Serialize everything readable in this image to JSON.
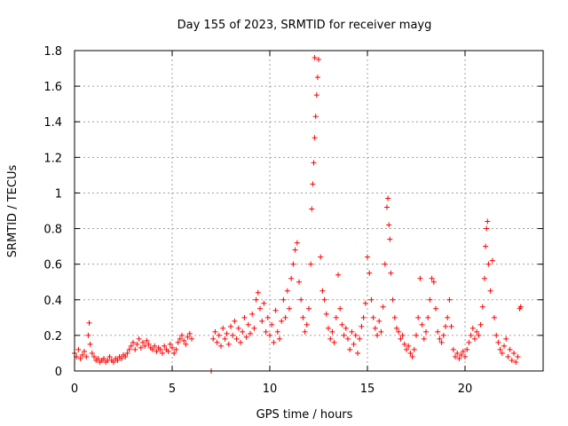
{
  "chart_data": {
    "type": "scatter",
    "title": "Day 155 of 2023, SRMTID for receiver mayg",
    "xlabel": "GPS time / hours",
    "ylabel": "SRMTID / TECUs",
    "xlim": [
      0,
      24
    ],
    "ylim": [
      0,
      1.8
    ],
    "x_ticks": [
      0,
      5,
      10,
      15,
      20
    ],
    "x_tick_labels": [
      "0",
      "5",
      "10",
      "15",
      "20"
    ],
    "y_ticks": [
      0,
      0.2,
      0.4,
      0.6,
      0.8,
      1.0,
      1.2,
      1.4,
      1.6,
      1.8
    ],
    "y_tick_labels": [
      "0",
      "0.2",
      "0.4",
      "0.6",
      "0.8",
      "1",
      "1.2",
      "1.4",
      "1.6",
      "1.8"
    ],
    "grid": true,
    "series": [
      {
        "name": "SRMTID",
        "color": "#ff0000",
        "marker": "plus",
        "points": [
          [
            0.0,
            0.1
          ],
          [
            0.1,
            0.08
          ],
          [
            0.2,
            0.12
          ],
          [
            0.3,
            0.07
          ],
          [
            0.4,
            0.09
          ],
          [
            0.5,
            0.11
          ],
          [
            0.6,
            0.08
          ],
          [
            0.7,
            0.2
          ],
          [
            0.75,
            0.27
          ],
          [
            0.8,
            0.15
          ],
          [
            0.9,
            0.1
          ],
          [
            1.0,
            0.08
          ],
          [
            1.1,
            0.06
          ],
          [
            1.2,
            0.07
          ],
          [
            1.3,
            0.05
          ],
          [
            1.4,
            0.06
          ],
          [
            1.5,
            0.07
          ],
          [
            1.6,
            0.05
          ],
          [
            1.7,
            0.06
          ],
          [
            1.8,
            0.08
          ],
          [
            1.9,
            0.06
          ],
          [
            2.0,
            0.05
          ],
          [
            2.1,
            0.07
          ],
          [
            2.2,
            0.06
          ],
          [
            2.3,
            0.08
          ],
          [
            2.4,
            0.07
          ],
          [
            2.5,
            0.09
          ],
          [
            2.6,
            0.08
          ],
          [
            2.7,
            0.1
          ],
          [
            2.8,
            0.12
          ],
          [
            2.9,
            0.14
          ],
          [
            3.0,
            0.16
          ],
          [
            3.1,
            0.12
          ],
          [
            3.2,
            0.15
          ],
          [
            3.3,
            0.18
          ],
          [
            3.4,
            0.13
          ],
          [
            3.5,
            0.16
          ],
          [
            3.6,
            0.14
          ],
          [
            3.7,
            0.17
          ],
          [
            3.8,
            0.15
          ],
          [
            3.9,
            0.13
          ],
          [
            4.0,
            0.12
          ],
          [
            4.1,
            0.14
          ],
          [
            4.2,
            0.11
          ],
          [
            4.3,
            0.13
          ],
          [
            4.4,
            0.12
          ],
          [
            4.5,
            0.1
          ],
          [
            4.6,
            0.14
          ],
          [
            4.7,
            0.12
          ],
          [
            4.8,
            0.11
          ],
          [
            4.9,
            0.15
          ],
          [
            5.0,
            0.13
          ],
          [
            5.1,
            0.1
          ],
          [
            5.2,
            0.12
          ],
          [
            5.3,
            0.16
          ],
          [
            5.4,
            0.18
          ],
          [
            5.5,
            0.2
          ],
          [
            5.6,
            0.17
          ],
          [
            5.7,
            0.15
          ],
          [
            5.8,
            0.19
          ],
          [
            5.9,
            0.21
          ],
          [
            6.0,
            0.18
          ],
          [
            7.0,
            0.0
          ],
          [
            7.1,
            0.18
          ],
          [
            7.2,
            0.22
          ],
          [
            7.3,
            0.16
          ],
          [
            7.4,
            0.2
          ],
          [
            7.5,
            0.14
          ],
          [
            7.6,
            0.24
          ],
          [
            7.7,
            0.18
          ],
          [
            7.8,
            0.21
          ],
          [
            7.9,
            0.15
          ],
          [
            8.0,
            0.25
          ],
          [
            8.1,
            0.2
          ],
          [
            8.2,
            0.28
          ],
          [
            8.3,
            0.18
          ],
          [
            8.4,
            0.24
          ],
          [
            8.5,
            0.16
          ],
          [
            8.6,
            0.22
          ],
          [
            8.7,
            0.3
          ],
          [
            8.8,
            0.19
          ],
          [
            8.9,
            0.26
          ],
          [
            9.0,
            0.21
          ],
          [
            9.1,
            0.32
          ],
          [
            9.2,
            0.24
          ],
          [
            9.3,
            0.4
          ],
          [
            9.4,
            0.44
          ],
          [
            9.5,
            0.35
          ],
          [
            9.6,
            0.28
          ],
          [
            9.7,
            0.38
          ],
          [
            9.8,
            0.22
          ],
          [
            9.9,
            0.3
          ],
          [
            10.0,
            0.2
          ],
          [
            10.1,
            0.26
          ],
          [
            10.2,
            0.16
          ],
          [
            10.3,
            0.34
          ],
          [
            10.4,
            0.22
          ],
          [
            10.5,
            0.18
          ],
          [
            10.6,
            0.28
          ],
          [
            10.7,
            0.4
          ],
          [
            10.8,
            0.3
          ],
          [
            10.9,
            0.45
          ],
          [
            11.0,
            0.35
          ],
          [
            11.1,
            0.52
          ],
          [
            11.2,
            0.6
          ],
          [
            11.3,
            0.68
          ],
          [
            11.4,
            0.72
          ],
          [
            11.5,
            0.5
          ],
          [
            11.6,
            0.4
          ],
          [
            11.7,
            0.3
          ],
          [
            11.8,
            0.22
          ],
          [
            11.9,
            0.26
          ],
          [
            12.0,
            0.35
          ],
          [
            12.1,
            0.6
          ],
          [
            12.15,
            0.91
          ],
          [
            12.2,
            1.05
          ],
          [
            12.25,
            1.17
          ],
          [
            12.3,
            1.31
          ],
          [
            12.35,
            1.43
          ],
          [
            12.4,
            1.55
          ],
          [
            12.45,
            1.65
          ],
          [
            12.5,
            1.75
          ],
          [
            12.3,
            1.76
          ],
          [
            12.6,
            0.64
          ],
          [
            12.7,
            0.45
          ],
          [
            12.8,
            0.4
          ],
          [
            12.9,
            0.32
          ],
          [
            13.0,
            0.24
          ],
          [
            13.1,
            0.18
          ],
          [
            13.2,
            0.22
          ],
          [
            13.3,
            0.16
          ],
          [
            13.4,
            0.3
          ],
          [
            13.5,
            0.54
          ],
          [
            13.6,
            0.35
          ],
          [
            13.7,
            0.26
          ],
          [
            13.8,
            0.2
          ],
          [
            13.9,
            0.24
          ],
          [
            14.0,
            0.18
          ],
          [
            14.1,
            0.12
          ],
          [
            14.2,
            0.22
          ],
          [
            14.3,
            0.15
          ],
          [
            14.4,
            0.2
          ],
          [
            14.5,
            0.1
          ],
          [
            14.6,
            0.18
          ],
          [
            14.7,
            0.25
          ],
          [
            14.8,
            0.3
          ],
          [
            14.9,
            0.38
          ],
          [
            15.0,
            0.64
          ],
          [
            15.1,
            0.55
          ],
          [
            15.2,
            0.4
          ],
          [
            15.3,
            0.3
          ],
          [
            15.4,
            0.24
          ],
          [
            15.5,
            0.2
          ],
          [
            15.6,
            0.28
          ],
          [
            15.7,
            0.22
          ],
          [
            15.8,
            0.36
          ],
          [
            15.9,
            0.6
          ],
          [
            16.0,
            0.92
          ],
          [
            16.05,
            0.97
          ],
          [
            16.1,
            0.82
          ],
          [
            16.15,
            0.74
          ],
          [
            16.2,
            0.55
          ],
          [
            16.3,
            0.4
          ],
          [
            16.4,
            0.3
          ],
          [
            16.5,
            0.24
          ],
          [
            16.6,
            0.22
          ],
          [
            16.7,
            0.18
          ],
          [
            16.8,
            0.2
          ],
          [
            16.9,
            0.15
          ],
          [
            17.0,
            0.12
          ],
          [
            17.1,
            0.14
          ],
          [
            17.2,
            0.1
          ],
          [
            17.3,
            0.08
          ],
          [
            17.4,
            0.12
          ],
          [
            17.5,
            0.2
          ],
          [
            17.6,
            0.3
          ],
          [
            17.7,
            0.52
          ],
          [
            17.8,
            0.26
          ],
          [
            17.9,
            0.18
          ],
          [
            18.0,
            0.22
          ],
          [
            18.1,
            0.3
          ],
          [
            18.2,
            0.4
          ],
          [
            18.3,
            0.52
          ],
          [
            18.4,
            0.5
          ],
          [
            18.5,
            0.35
          ],
          [
            18.6,
            0.22
          ],
          [
            18.7,
            0.18
          ],
          [
            18.8,
            0.16
          ],
          [
            18.9,
            0.2
          ],
          [
            19.0,
            0.25
          ],
          [
            19.1,
            0.3
          ],
          [
            19.2,
            0.4
          ],
          [
            19.3,
            0.25
          ],
          [
            19.4,
            0.12
          ],
          [
            19.5,
            0.08
          ],
          [
            19.6,
            0.1
          ],
          [
            19.7,
            0.07
          ],
          [
            19.8,
            0.09
          ],
          [
            19.9,
            0.11
          ],
          [
            20.0,
            0.08
          ],
          [
            20.1,
            0.12
          ],
          [
            20.2,
            0.16
          ],
          [
            20.3,
            0.2
          ],
          [
            20.4,
            0.24
          ],
          [
            20.5,
            0.18
          ],
          [
            20.6,
            0.22
          ],
          [
            20.7,
            0.2
          ],
          [
            20.8,
            0.26
          ],
          [
            20.9,
            0.36
          ],
          [
            21.0,
            0.52
          ],
          [
            21.05,
            0.7
          ],
          [
            21.1,
            0.8
          ],
          [
            21.15,
            0.84
          ],
          [
            21.2,
            0.6
          ],
          [
            21.3,
            0.45
          ],
          [
            21.4,
            0.62
          ],
          [
            21.5,
            0.3
          ],
          [
            21.6,
            0.2
          ],
          [
            21.7,
            0.16
          ],
          [
            21.8,
            0.12
          ],
          [
            21.9,
            0.1
          ],
          [
            22.0,
            0.14
          ],
          [
            22.1,
            0.18
          ],
          [
            22.2,
            0.08
          ],
          [
            22.3,
            0.12
          ],
          [
            22.4,
            0.06
          ],
          [
            22.5,
            0.1
          ],
          [
            22.6,
            0.05
          ],
          [
            22.7,
            0.08
          ],
          [
            22.8,
            0.35
          ],
          [
            22.85,
            0.36
          ]
        ]
      }
    ]
  }
}
